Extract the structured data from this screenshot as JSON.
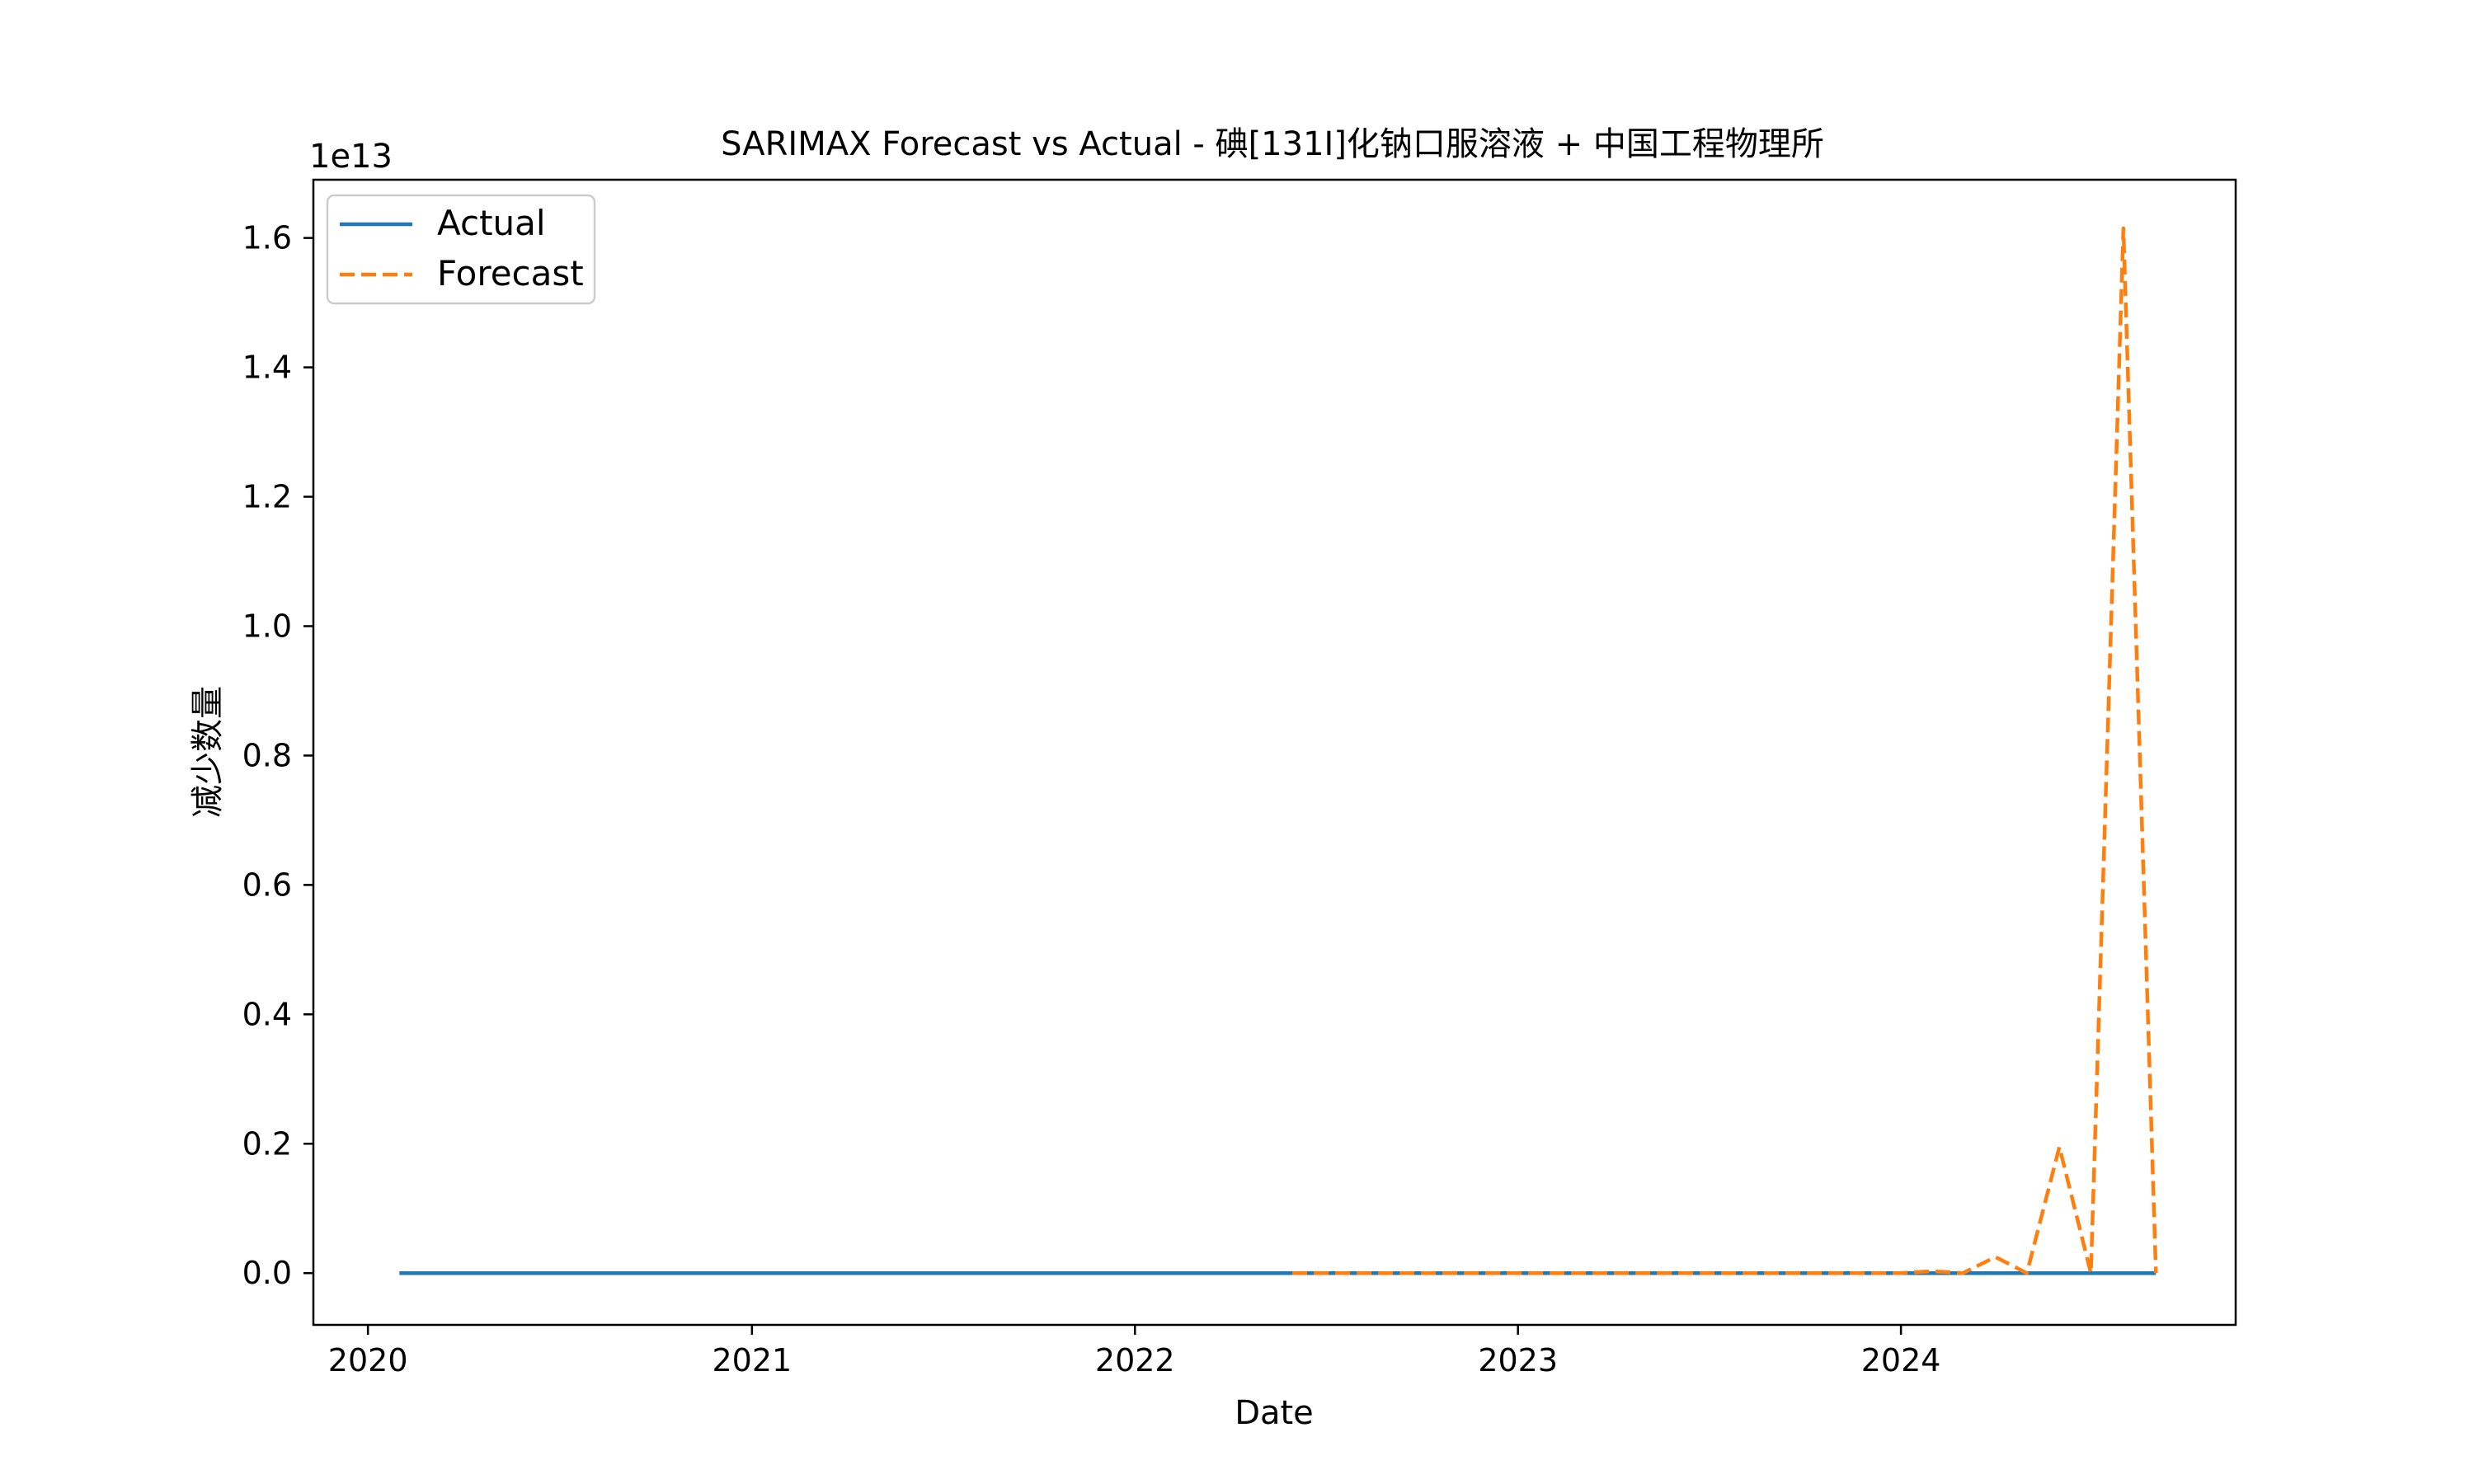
{
  "chart_data": {
    "type": "line",
    "title": "SARIMAX Forecast vs Actual - 碘[131I]化钠口服溶液 + 中国工程物理所",
    "xlabel": "Date",
    "ylabel": "减少数量",
    "y_offset_label": "1e13",
    "y_scale_factor": 10000000000000.0,
    "xlim": [
      "2019-11-10",
      "2024-11-15"
    ],
    "ylim": [
      -0.08,
      1.69
    ],
    "x_ticks": [
      {
        "date": "2020-01-01",
        "label": "2020"
      },
      {
        "date": "2021-01-01",
        "label": "2021"
      },
      {
        "date": "2022-01-01",
        "label": "2022"
      },
      {
        "date": "2023-01-01",
        "label": "2023"
      },
      {
        "date": "2024-01-01",
        "label": "2024"
      }
    ],
    "y_ticks": [
      {
        "value": 0.0,
        "label": "0.0"
      },
      {
        "value": 0.2,
        "label": "0.2"
      },
      {
        "value": 0.4,
        "label": "0.4"
      },
      {
        "value": 0.6,
        "label": "0.6"
      },
      {
        "value": 0.8,
        "label": "0.8"
      },
      {
        "value": 1.0,
        "label": "1.0"
      },
      {
        "value": 1.2,
        "label": "1.2"
      },
      {
        "value": 1.4,
        "label": "1.4"
      },
      {
        "value": 1.6,
        "label": "1.6"
      }
    ],
    "legend_position": "top-left",
    "grid": false,
    "series": [
      {
        "name": "Actual",
        "color": "#1f77b4",
        "style": "solid",
        "points": [
          {
            "x": "2020-01-31",
            "y": 0.0
          },
          {
            "x": "2024-08-31",
            "y": 0.0
          }
        ]
      },
      {
        "name": "Forecast",
        "color": "#ff7f0e",
        "style": "dashed",
        "points": [
          {
            "x": "2022-05-31",
            "y": 0.0
          },
          {
            "x": "2022-06-30",
            "y": 0.0
          },
          {
            "x": "2022-07-31",
            "y": 0.0
          },
          {
            "x": "2022-08-31",
            "y": 0.0
          },
          {
            "x": "2022-09-30",
            "y": 0.0
          },
          {
            "x": "2022-10-31",
            "y": 0.0
          },
          {
            "x": "2022-11-30",
            "y": 0.0
          },
          {
            "x": "2022-12-31",
            "y": 0.0
          },
          {
            "x": "2023-01-31",
            "y": 0.0
          },
          {
            "x": "2023-02-28",
            "y": 0.0
          },
          {
            "x": "2023-03-31",
            "y": 0.0
          },
          {
            "x": "2023-04-30",
            "y": 0.0
          },
          {
            "x": "2023-05-31",
            "y": 0.0
          },
          {
            "x": "2023-06-30",
            "y": 0.0
          },
          {
            "x": "2023-07-31",
            "y": 0.0
          },
          {
            "x": "2023-08-31",
            "y": 0.0
          },
          {
            "x": "2023-09-30",
            "y": 0.0
          },
          {
            "x": "2023-10-31",
            "y": 0.0
          },
          {
            "x": "2023-11-30",
            "y": 0.0
          },
          {
            "x": "2023-12-31",
            "y": 0.0
          },
          {
            "x": "2024-01-31",
            "y": 0.003
          },
          {
            "x": "2024-02-29",
            "y": 0.0
          },
          {
            "x": "2024-03-31",
            "y": 0.025
          },
          {
            "x": "2024-04-30",
            "y": 0.0
          },
          {
            "x": "2024-05-31",
            "y": 0.195
          },
          {
            "x": "2024-06-30",
            "y": 0.0
          },
          {
            "x": "2024-07-31",
            "y": 1.615
          },
          {
            "x": "2024-08-31",
            "y": 0.0
          }
        ]
      }
    ]
  }
}
